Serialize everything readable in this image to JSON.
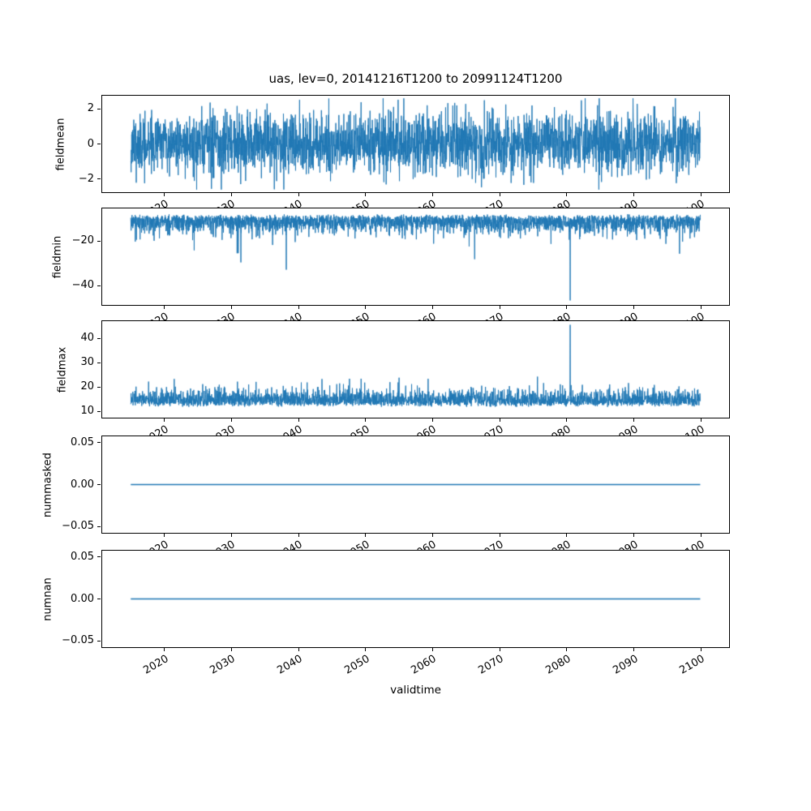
{
  "chart_data": {
    "type": "line",
    "title": "uas, lev=0, 20141216T1200 to 20991124T1200",
    "xlabel": "validtime",
    "line_color": "#1f77b4",
    "grid": false,
    "legend": false,
    "x_range": [
      2010.7,
      2104.2
    ],
    "x_data_start": 2014.96,
    "x_data_end": 2099.9,
    "n_points": 3000,
    "xticks": [
      2020,
      2030,
      2040,
      2050,
      2060,
      2070,
      2080,
      2090,
      2100
    ],
    "xtick_labels": [
      "2020",
      "2030",
      "2040",
      "2050",
      "2060",
      "2070",
      "2080",
      "2090",
      "2100"
    ],
    "subplots": [
      {
        "ylabel": "fieldmean",
        "ylim": [
          -2.75,
          2.75
        ],
        "ytick_values": [
          -2,
          0,
          2
        ],
        "ytick_labels": [
          "−2",
          "0",
          "2"
        ],
        "seed": 11,
        "series": {
          "kind": "noise",
          "mean": 0,
          "std": 0.85,
          "clip": 2.6
        }
      },
      {
        "ylabel": "fieldmin",
        "ylim": [
          -48.5,
          -5.5
        ],
        "ytick_values": [
          -40,
          -20
        ],
        "ytick_labels": [
          "−40",
          "−20"
        ],
        "seed": 22,
        "series": {
          "kind": "halfnoise",
          "direction": -1,
          "base": -8.8,
          "std": 3.6,
          "jitter": 0.8,
          "spike_prob": 0.0035,
          "spike_min": 6,
          "spike_max": 20,
          "forced_spikes": [
            {
              "x": 2080.5,
              "value": -46.5
            }
          ]
        }
      },
      {
        "ylabel": "fieldmax",
        "ylim": [
          7.5,
          47
        ],
        "ytick_values": [
          10,
          20,
          30,
          40
        ],
        "ytick_labels": [
          "10",
          "20",
          "30",
          "40"
        ],
        "seed": 33,
        "series": {
          "kind": "halfnoise",
          "direction": 1,
          "base": 12.6,
          "std": 3.0,
          "jitter": 0.8,
          "spike_prob": 0.004,
          "spike_min": 4,
          "spike_max": 10,
          "forced_spikes": [
            {
              "x": 2080.5,
              "value": 45.5
            }
          ]
        }
      },
      {
        "ylabel": "nummasked",
        "ylim": [
          -0.0576,
          0.0576
        ],
        "ytick_values": [
          -0.05,
          0,
          0.05
        ],
        "ytick_labels": [
          "−0.05",
          "0.00",
          "0.05"
        ],
        "seed": 44,
        "series": {
          "kind": "flat",
          "value": 0
        }
      },
      {
        "ylabel": "numnan",
        "ylim": [
          -0.0576,
          0.0576
        ],
        "ytick_values": [
          -0.05,
          0,
          0.05
        ],
        "ytick_labels": [
          "−0.05",
          "0.00",
          "0.05"
        ],
        "seed": 55,
        "series": {
          "kind": "flat",
          "value": 0
        }
      }
    ]
  }
}
